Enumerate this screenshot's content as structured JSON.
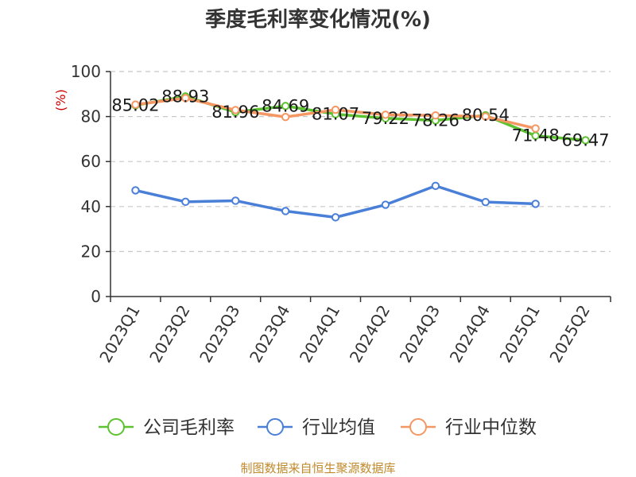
{
  "chart_data": {
    "type": "line",
    "title": "季度毛利率变化情况(%)",
    "unit": "(%)",
    "categories": [
      "2023Q1",
      "2023Q2",
      "2023Q3",
      "2023Q4",
      "2024Q1",
      "2024Q2",
      "2024Q3",
      "2024Q4",
      "2025Q1",
      "2025Q2"
    ],
    "ylim": [
      0,
      100
    ],
    "yticks": [
      0,
      20,
      40,
      60,
      80,
      100
    ],
    "grid": true,
    "legend_position": "bottom",
    "series": [
      {
        "name": "公司毛利率",
        "color": "#5cc22f",
        "labeled": true,
        "values": [
          85.02,
          88.93,
          81.96,
          84.69,
          81.07,
          79.22,
          78.26,
          80.54,
          71.48,
          69.47
        ]
      },
      {
        "name": "行业均值",
        "color": "#4a7fd8",
        "labeled": false,
        "values": [
          47.2,
          42.1,
          42.6,
          38.0,
          35.2,
          40.8,
          49.2,
          42.0,
          41.2,
          null
        ]
      },
      {
        "name": "行业中位数",
        "color": "#f59763",
        "labeled": false,
        "values": [
          85.3,
          88.2,
          82.9,
          79.8,
          83.0,
          80.8,
          80.5,
          80.0,
          74.7,
          null
        ]
      }
    ]
  },
  "source": "制图数据来自恒生聚源数据库"
}
